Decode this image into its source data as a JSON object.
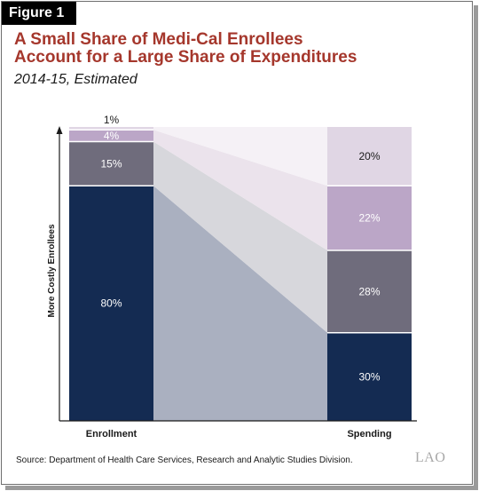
{
  "figure_label": "Figure 1",
  "title_line1": "A Small Share of Medi-Cal Enrollees",
  "title_line2": "Account for a Large Share of Expenditures",
  "subtitle": "2014-15, Estimated",
  "source": "Source: Department of Health Care Services, Research and Analytic Studies Division.",
  "logo_text": "LAO",
  "chart_data": {
    "type": "bar",
    "stacked": true,
    "percent": true,
    "categories": [
      "Enrollment",
      "Spending"
    ],
    "ylabel": "More Costly Enrollees",
    "ylim": [
      0,
      100
    ],
    "connectors": true,
    "series": [
      {
        "name": "",
        "values": [
          80,
          30
        ],
        "labels": [
          "80%",
          "30%"
        ],
        "color": "#142b52",
        "connector_color": "#aab0c0",
        "text_color": "#ffffff"
      },
      {
        "name": "",
        "values": [
          15,
          28
        ],
        "labels": [
          "15%",
          "28%"
        ],
        "color": "#6f6c7c",
        "connector_color": "#d7d7dc",
        "text_color": "#ffffff"
      },
      {
        "name": "",
        "values": [
          4,
          22
        ],
        "labels": [
          "4%",
          "22%"
        ],
        "color": "#bba6c7",
        "connector_color": "#ebe3ec",
        "text_color": "#ffffff"
      },
      {
        "name": "",
        "values": [
          1,
          20
        ],
        "labels": [
          "1%",
          "20%"
        ],
        "color": "#e0d6e4",
        "connector_color": "#f5f1f6",
        "text_color": "#1a1a1a"
      }
    ]
  }
}
